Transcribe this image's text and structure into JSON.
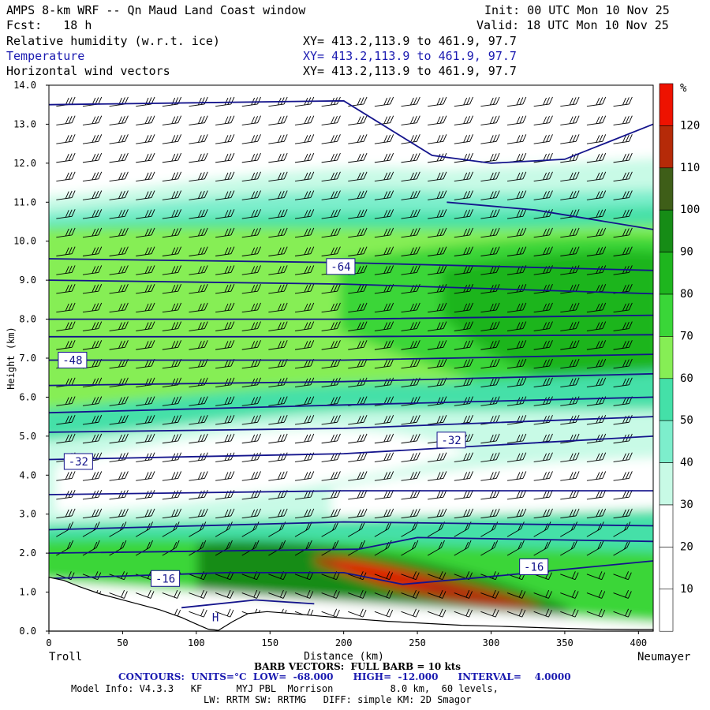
{
  "header": {
    "title": "AMPS 8-km WRF -- Qn Maud Land Coast window",
    "init": "Init: 00 UTC Mon 10 Nov 25",
    "fcst": "Fcst:   18 h",
    "valid": "Valid: 18 UTC Mon 10 Nov 25",
    "fields": [
      {
        "name": "Relative humidity (w.r.t. ice)",
        "xy": "XY= 413.2,113.9 to 461.9, 97.7"
      },
      {
        "name": "Temperature",
        "xy": "XY= 413.2,113.9 to 461.9, 97.7"
      },
      {
        "name": "Horizontal wind vectors",
        "xy": "XY= 413.2,113.9 to 461.9, 97.7"
      }
    ]
  },
  "chart_data": {
    "type": "heatmap",
    "xlabel": "Distance (km)",
    "ylabel": "Height (km)",
    "xlim": [
      0,
      410
    ],
    "ylim": [
      0,
      14
    ],
    "x_ticks": [
      0,
      50,
      100,
      150,
      200,
      250,
      300,
      350,
      400
    ],
    "y_ticks": [
      "0.0",
      "1.0",
      "2.0",
      "3.0",
      "4.0",
      "5.0",
      "6.0",
      "7.0",
      "8.0",
      "9.0",
      "10.0",
      "11.0",
      "12.0",
      "13.0",
      "14.0"
    ],
    "left_endpoint": "Troll",
    "right_endpoint": "Neumayer",
    "colorbar": {
      "unit": "%",
      "levels": [
        10,
        20,
        30,
        40,
        50,
        60,
        70,
        80,
        90,
        100,
        110,
        120
      ],
      "colors": [
        "#ffffff",
        "#ffffff",
        "#ffffff",
        "#c8fae6",
        "#7deecc",
        "#44e0a8",
        "#86ee55",
        "#3ad638",
        "#1eb51e",
        "#168c16",
        "#3e5e18",
        "#b52a08",
        "#ee1200"
      ]
    },
    "temperature_contours": {
      "units": "°C",
      "low": -68,
      "high": -12,
      "interval": 4,
      "labels": [
        {
          "text": "-64",
          "x": 198,
          "y": 9.35
        },
        {
          "text": "-48",
          "x": 16,
          "y": 6.95
        },
        {
          "text": "-32",
          "x": 20,
          "y": 4.35
        },
        {
          "text": "-32",
          "x": 273,
          "y": 4.9
        },
        {
          "text": "-16",
          "x": 79,
          "y": 1.35
        },
        {
          "text": "-16",
          "x": 329,
          "y": 1.65
        }
      ],
      "low_marker": {
        "text": "H",
        "x": 113,
        "y": 0.35
      }
    },
    "terrain_km": [
      [
        0,
        1.38
      ],
      [
        10,
        1.3
      ],
      [
        20,
        1.15
      ],
      [
        35,
        0.95
      ],
      [
        55,
        0.75
      ],
      [
        75,
        0.55
      ],
      [
        90,
        0.35
      ],
      [
        100,
        0.18
      ],
      [
        108,
        0.05
      ],
      [
        115,
        0.02
      ],
      [
        125,
        0.25
      ],
      [
        135,
        0.45
      ],
      [
        148,
        0.5
      ],
      [
        165,
        0.45
      ],
      [
        185,
        0.38
      ],
      [
        205,
        0.32
      ],
      [
        230,
        0.25
      ],
      [
        255,
        0.2
      ],
      [
        280,
        0.15
      ],
      [
        310,
        0.12
      ],
      [
        340,
        0.08
      ],
      [
        370,
        0.05
      ],
      [
        400,
        0.04
      ],
      [
        410,
        0.04
      ]
    ]
  },
  "footer": {
    "barb_note": "BARB VECTORS:  FULL BARB = 10 kts",
    "contours_note": "CONTOURS:  UNITS=°C  LOW=  -68.000      HIGH=  -12.000      INTERVAL=    4.0000",
    "model_info": "Model Info: V4.3.3   KF      MYJ PBL  Morrison          8.0 km,  60 levels,",
    "model_info2": "LW: RRTM SW: RRTMG   DIFF: simple KM: 2D Smagor"
  },
  "colors": {
    "contour": "#14148c",
    "text_blue": "#1a1ab0"
  }
}
